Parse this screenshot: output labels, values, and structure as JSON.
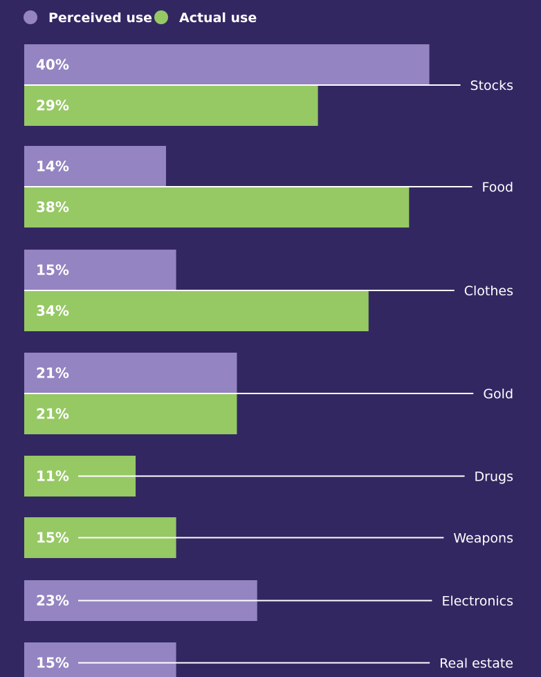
{
  "chart_data": {
    "type": "bar",
    "orientation": "horizontal",
    "legend": {
      "placement": "top-left",
      "items": [
        {
          "name": "Perceived use",
          "color": "#9484c1"
        },
        {
          "name": "Actual use",
          "color": "#96c864"
        }
      ]
    },
    "grid": false,
    "xlim": [
      0,
      40
    ],
    "categories": [
      {
        "name": "Stocks",
        "bars": [
          {
            "series": "Perceived use",
            "value": 40,
            "label": "40%"
          },
          {
            "series": "Actual use",
            "value": 29,
            "label": "29%"
          }
        ]
      },
      {
        "name": "Food",
        "bars": [
          {
            "series": "Perceived use",
            "value": 14,
            "label": "14%"
          },
          {
            "series": "Actual use",
            "value": 38,
            "label": "38%"
          }
        ]
      },
      {
        "name": "Clothes",
        "bars": [
          {
            "series": "Perceived use",
            "value": 15,
            "label": "15%"
          },
          {
            "series": "Actual use",
            "value": 34,
            "label": "34%"
          }
        ]
      },
      {
        "name": "Gold",
        "bars": [
          {
            "series": "Perceived use",
            "value": 21,
            "label": "21%"
          },
          {
            "series": "Actual use",
            "value": 21,
            "label": "21%"
          }
        ]
      },
      {
        "name": "Drugs",
        "bars": [
          {
            "series": "Actual use",
            "value": 11,
            "label": "11%"
          }
        ]
      },
      {
        "name": "Weapons",
        "bars": [
          {
            "series": "Actual use",
            "value": 15,
            "label": "15%"
          }
        ]
      },
      {
        "name": "Electronics",
        "bars": [
          {
            "series": "Perceived use",
            "value": 23,
            "label": "23%"
          }
        ]
      },
      {
        "name": "Real estate",
        "bars": [
          {
            "series": "Perceived use",
            "value": 15,
            "label": "15%"
          }
        ]
      }
    ]
  },
  "colors": {
    "background": "#332762",
    "text": "#ffffff",
    "line": "#ffffff"
  }
}
